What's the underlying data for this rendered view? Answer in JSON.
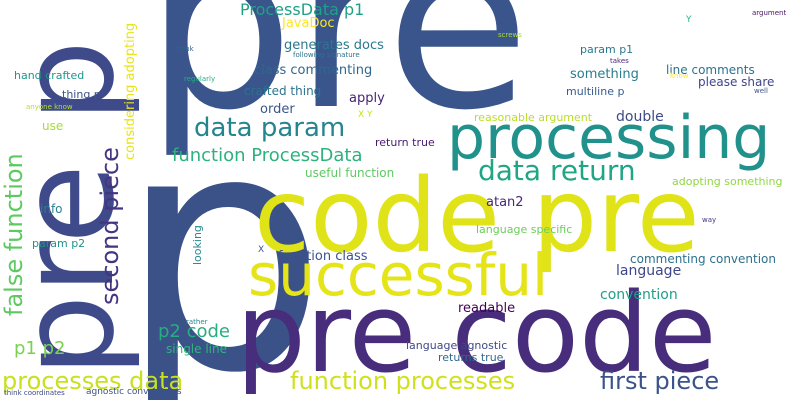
{
  "words": [
    {
      "text": "p",
      "color": "#3b5288"
    },
    {
      "text": "pre",
      "color": "#39558c"
    },
    {
      "text": "pre p",
      "color": "#3e4a89"
    },
    {
      "text": "processing",
      "color": "#21918c"
    },
    {
      "text": "code pre",
      "color": "#dfe318"
    },
    {
      "text": "pre code",
      "color": "#472d7b"
    },
    {
      "text": "successful",
      "color": "#e5e419"
    },
    {
      "text": "false function",
      "color": "#5ec962"
    },
    {
      "text": "second piece",
      "color": "#453581"
    },
    {
      "text": "data param",
      "color": "#25858e"
    },
    {
      "text": "data return",
      "color": "#21a685"
    },
    {
      "text": "function ProcessData",
      "color": "#2db27d"
    },
    {
      "text": "function processes",
      "color": "#d0e11c"
    },
    {
      "text": "processes data",
      "color": "#c8e020"
    },
    {
      "text": "first piece",
      "color": "#3b528b"
    },
    {
      "text": "p1 p2",
      "color": "#7ad151"
    },
    {
      "text": "p2 code",
      "color": "#26ad81"
    },
    {
      "text": "ProcessData p1",
      "color": "#1fa187"
    },
    {
      "text": "considering adopting",
      "color": "#e7e419"
    },
    {
      "text": "JavaDoc",
      "color": "#fde725"
    },
    {
      "text": "generates docs",
      "color": "#2a788e"
    },
    {
      "text": "class commenting",
      "color": "#31668e"
    },
    {
      "text": "crafted thing",
      "color": "#2c728e"
    },
    {
      "text": "order",
      "color": "#39568c"
    },
    {
      "text": "apply",
      "color": "#482475"
    },
    {
      "text": "double",
      "color": "#3e4989"
    },
    {
      "text": "return true",
      "color": "#481a6c"
    },
    {
      "text": "useful function",
      "color": "#5ec962"
    },
    {
      "text": "reasonable argument",
      "color": "#bade28"
    },
    {
      "text": "something",
      "color": "#287d8e"
    },
    {
      "text": "param p1",
      "color": "#2a788e"
    },
    {
      "text": "line comments",
      "color": "#2c728e"
    },
    {
      "text": "please share",
      "color": "#404588"
    },
    {
      "text": "multiline p",
      "color": "#365c8d"
    },
    {
      "text": "adopting something",
      "color": "#90d743"
    },
    {
      "text": "atan2",
      "color": "#482878"
    },
    {
      "text": "language specific",
      "color": "#6ccd5a"
    },
    {
      "text": "commenting convention",
      "color": "#2d708e"
    },
    {
      "text": "function class",
      "color": "#3b528b"
    },
    {
      "text": "language",
      "color": "#3f4788"
    },
    {
      "text": "convention",
      "color": "#1f9e89"
    },
    {
      "text": "readable",
      "color": "#440154"
    },
    {
      "text": "language agnostic",
      "color": "#3e4989"
    },
    {
      "text": "returns true",
      "color": "#31688e"
    },
    {
      "text": "single line",
      "color": "#2fb47c"
    },
    {
      "text": "agnostic conventions",
      "color": "#3b528b"
    },
    {
      "text": "hand crafted",
      "color": "#1f968b"
    },
    {
      "text": "thing p",
      "color": "#3b528b"
    },
    {
      "text": "use",
      "color": "#a5db36"
    },
    {
      "text": "info",
      "color": "#26828e"
    },
    {
      "text": "param p2",
      "color": "#20928c"
    },
    {
      "text": "looking",
      "color": "#23898e"
    },
    {
      "text": "following signature",
      "color": "#2c728e"
    },
    {
      "text": "think",
      "color": "#34618d"
    },
    {
      "text": "regularly",
      "color": "#27ad81"
    },
    {
      "text": "anyone know",
      "color": "#b5de2b"
    },
    {
      "text": "X Y",
      "color": "#cae11f"
    },
    {
      "text": "X",
      "color": "#3b528b"
    },
    {
      "text": "Y",
      "color": "#2fb47c"
    },
    {
      "text": "argument",
      "color": "#471365"
    },
    {
      "text": "screws",
      "color": "#a8db34"
    },
    {
      "text": "takes",
      "color": "#482878"
    },
    {
      "text": "know",
      "color": "#fde725"
    },
    {
      "text": "well",
      "color": "#3b528b"
    },
    {
      "text": "way",
      "color": "#46337e"
    },
    {
      "text": "rather",
      "color": "#23888e"
    },
    {
      "text": "think coordinates",
      "color": "#3e4a89"
    }
  ]
}
